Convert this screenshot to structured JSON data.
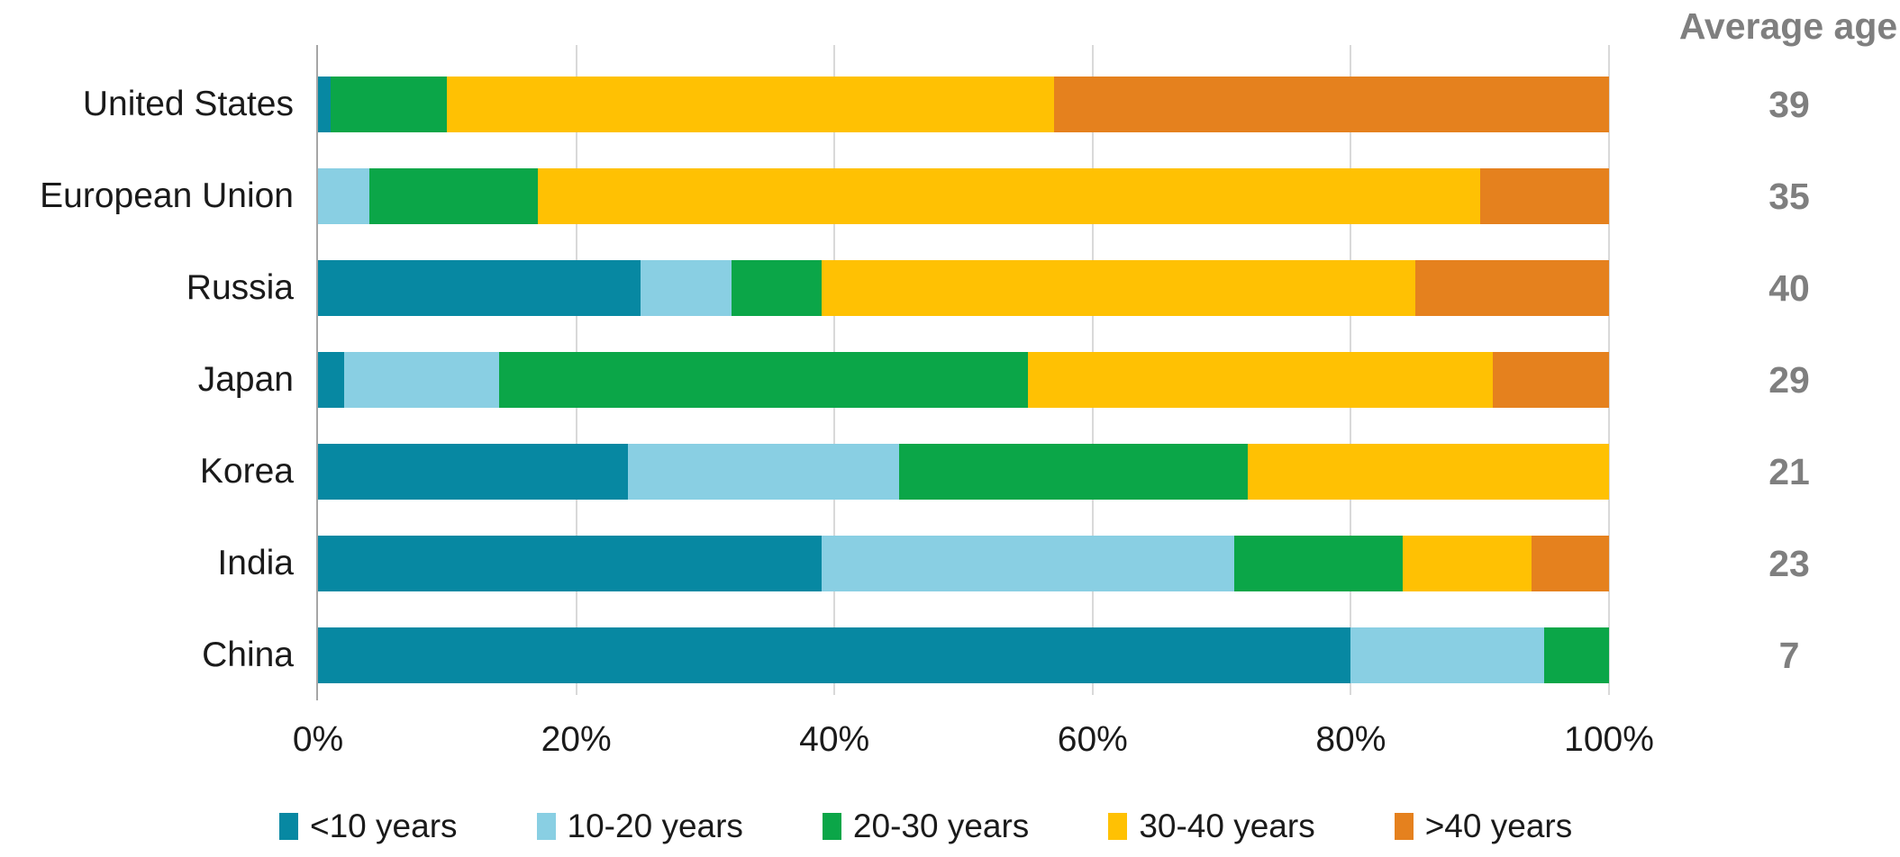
{
  "header": {
    "average_age_label": "Average age"
  },
  "palette": {
    "axis_line": "#a6a6a6",
    "gridline": "#d9d9d9",
    "label_text": "#1a1a1a",
    "average_age_text": "#7f7f7f"
  },
  "chart_data": {
    "type": "bar",
    "subtype": "horizontal-stacked-percent",
    "title": "",
    "xlabel": "",
    "ylabel": "",
    "xlim": [
      0,
      100
    ],
    "grid": true,
    "legend_position": "bottom",
    "x_ticks": [
      "0%",
      "20%",
      "40%",
      "60%",
      "80%",
      "100%"
    ],
    "x_tick_values": [
      0,
      20,
      40,
      60,
      80,
      100
    ],
    "categories": [
      "United States",
      "European Union",
      "Russia",
      "Japan",
      "Korea",
      "India",
      "China"
    ],
    "series": [
      {
        "name": "<10 years",
        "color": "#0788a2",
        "values": [
          1,
          0,
          25,
          2,
          24,
          39,
          80
        ]
      },
      {
        "name": "10-20 years",
        "color": "#89cfe3",
        "values": [
          0,
          4,
          7,
          12,
          21,
          32,
          15
        ]
      },
      {
        "name": "20-30 years",
        "color": "#0ba648",
        "values": [
          9,
          13,
          7,
          41,
          27,
          13,
          5
        ]
      },
      {
        "name": "30-40 years",
        "color": "#ffc103",
        "values": [
          47,
          73,
          46,
          36,
          28,
          10,
          0
        ]
      },
      {
        "name": ">40 years",
        "color": "#e5811e",
        "values": [
          43,
          10,
          15,
          9,
          0,
          6,
          0
        ]
      }
    ],
    "right_column": {
      "label": "Average age",
      "values": [
        39,
        35,
        40,
        29,
        21,
        23,
        7
      ]
    }
  }
}
